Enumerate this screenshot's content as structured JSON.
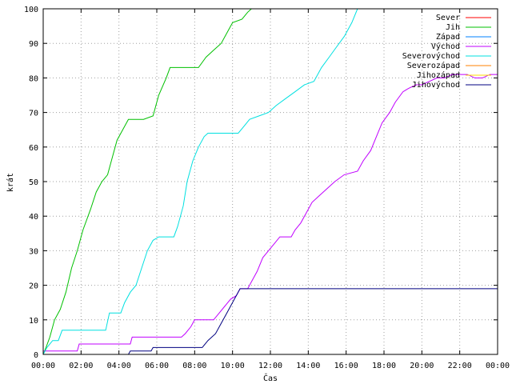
{
  "chart_data": {
    "type": "line",
    "title": "",
    "xlabel": "Čas",
    "ylabel": "krát",
    "xlim": [
      0,
      24
    ],
    "ylim": [
      0,
      100
    ],
    "x_ticks": [
      "00:00",
      "02:00",
      "04:00",
      "06:00",
      "08:00",
      "10:00",
      "12:00",
      "14:00",
      "16:00",
      "18:00",
      "20:00",
      "22:00",
      "00:00"
    ],
    "y_ticks": [
      "0",
      "10",
      "20",
      "30",
      "40",
      "50",
      "60",
      "70",
      "80",
      "90",
      "100"
    ],
    "grid": true,
    "legend_position": "top-right",
    "series": [
      {
        "name": "Sever",
        "color": "#ff0000",
        "points": []
      },
      {
        "name": "Jih",
        "color": "#00c000",
        "points": [
          [
            0,
            0
          ],
          [
            0.15,
            2
          ],
          [
            0.35,
            5
          ],
          [
            0.6,
            10
          ],
          [
            0.9,
            13
          ],
          [
            1.2,
            18
          ],
          [
            1.5,
            25
          ],
          [
            1.8,
            30
          ],
          [
            2.1,
            36
          ],
          [
            2.5,
            42
          ],
          [
            2.8,
            47
          ],
          [
            3.1,
            50
          ],
          [
            3.4,
            52
          ],
          [
            3.6,
            56
          ],
          [
            3.9,
            62
          ],
          [
            4.2,
            65
          ],
          [
            4.5,
            68
          ],
          [
            5.3,
            68
          ],
          [
            5.8,
            69
          ],
          [
            6.1,
            75
          ],
          [
            6.5,
            80
          ],
          [
            6.7,
            83
          ],
          [
            8.2,
            83
          ],
          [
            8.6,
            86
          ],
          [
            9.0,
            88
          ],
          [
            9.4,
            90
          ],
          [
            9.7,
            93
          ],
          [
            10.0,
            96
          ],
          [
            10.5,
            97
          ],
          [
            10.8,
            99
          ],
          [
            11.0,
            100
          ]
        ]
      },
      {
        "name": "Západ",
        "color": "#0080ff",
        "points": []
      },
      {
        "name": "Východ",
        "color": "#c000ff",
        "points": [
          [
            0,
            1
          ],
          [
            1.8,
            1
          ],
          [
            1.9,
            3
          ],
          [
            4.6,
            3
          ],
          [
            4.7,
            5
          ],
          [
            7.3,
            5
          ],
          [
            7.5,
            6
          ],
          [
            7.8,
            8
          ],
          [
            8.0,
            10
          ],
          [
            9.0,
            10
          ],
          [
            9.3,
            12
          ],
          [
            9.6,
            14
          ],
          [
            9.9,
            16
          ],
          [
            10.2,
            17
          ],
          [
            10.4,
            19
          ],
          [
            10.8,
            19
          ],
          [
            11.0,
            21
          ],
          [
            11.3,
            24
          ],
          [
            11.6,
            28
          ],
          [
            11.9,
            30
          ],
          [
            12.2,
            32
          ],
          [
            12.5,
            34
          ],
          [
            13.1,
            34
          ],
          [
            13.3,
            36
          ],
          [
            13.6,
            38
          ],
          [
            13.9,
            41
          ],
          [
            14.2,
            44
          ],
          [
            14.6,
            46
          ],
          [
            15.0,
            48
          ],
          [
            15.4,
            50
          ],
          [
            15.9,
            52
          ],
          [
            16.6,
            53
          ],
          [
            16.9,
            56
          ],
          [
            17.3,
            59
          ],
          [
            17.6,
            63
          ],
          [
            17.9,
            67
          ],
          [
            18.3,
            70
          ],
          [
            18.6,
            73
          ],
          [
            19.0,
            76
          ],
          [
            19.3,
            77
          ],
          [
            19.7,
            78
          ],
          [
            20.0,
            78
          ],
          [
            20.4,
            79
          ],
          [
            20.8,
            80
          ],
          [
            21.2,
            80
          ],
          [
            21.6,
            81
          ],
          [
            22.0,
            81
          ],
          [
            22.4,
            81
          ],
          [
            22.8,
            80
          ],
          [
            23.2,
            80
          ],
          [
            23.6,
            81
          ],
          [
            24.0,
            81
          ]
        ]
      },
      {
        "name": "Severovýchod",
        "color": "#00e0e0",
        "points": [
          [
            0,
            0
          ],
          [
            0.2,
            2
          ],
          [
            0.5,
            4
          ],
          [
            0.8,
            4
          ],
          [
            1.0,
            7
          ],
          [
            3.3,
            7
          ],
          [
            3.5,
            12
          ],
          [
            4.1,
            12
          ],
          [
            4.3,
            15
          ],
          [
            4.6,
            18
          ],
          [
            4.9,
            20
          ],
          [
            5.2,
            25
          ],
          [
            5.5,
            30
          ],
          [
            5.8,
            33
          ],
          [
            6.1,
            34
          ],
          [
            6.9,
            34
          ],
          [
            7.1,
            37
          ],
          [
            7.4,
            43
          ],
          [
            7.6,
            50
          ],
          [
            7.9,
            56
          ],
          [
            8.2,
            60
          ],
          [
            8.5,
            63
          ],
          [
            8.7,
            64
          ],
          [
            10.3,
            64
          ],
          [
            10.6,
            66
          ],
          [
            10.9,
            68
          ],
          [
            11.4,
            69
          ],
          [
            11.9,
            70
          ],
          [
            12.3,
            72
          ],
          [
            12.8,
            74
          ],
          [
            13.3,
            76
          ],
          [
            13.8,
            78
          ],
          [
            14.3,
            79
          ],
          [
            14.7,
            83
          ],
          [
            15.1,
            86
          ],
          [
            15.5,
            89
          ],
          [
            15.9,
            92
          ],
          [
            16.3,
            96
          ],
          [
            16.6,
            100
          ]
        ]
      },
      {
        "name": "Severozápad",
        "color": "#ff8000",
        "points": []
      },
      {
        "name": "Jihozápad",
        "color": "#ffd700",
        "points": []
      },
      {
        "name": "Jihovýchod",
        "color": "#000080",
        "points": [
          [
            4.5,
            0
          ],
          [
            4.6,
            1
          ],
          [
            5.7,
            1
          ],
          [
            5.8,
            2
          ],
          [
            8.4,
            2
          ],
          [
            8.7,
            4
          ],
          [
            9.1,
            6
          ],
          [
            9.4,
            9
          ],
          [
            9.7,
            12
          ],
          [
            10.1,
            16
          ],
          [
            10.4,
            19
          ],
          [
            24,
            19
          ]
        ]
      }
    ]
  }
}
